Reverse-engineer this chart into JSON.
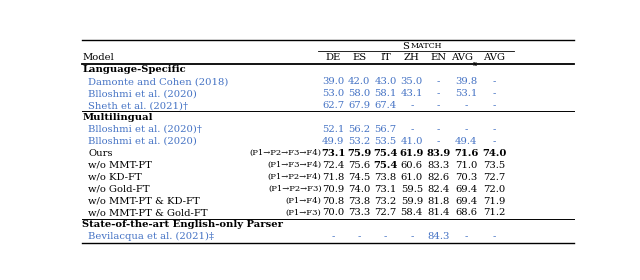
{
  "col_headers_display": [
    "DE",
    "ES",
    "IT",
    "ZH",
    "EN",
    "AVGx",
    "AVG"
  ],
  "sections": [
    {
      "label": "Language-Specific",
      "rows": [
        {
          "model": "Damonte and Cohen (2018)",
          "config": "",
          "vals": [
            "39.0",
            "42.0",
            "43.0",
            "35.0",
            "-",
            "39.8",
            "-"
          ],
          "color": "#4472C4",
          "bold_vals": []
        },
        {
          "model": "Blloshmi et al. (2020)",
          "config": "",
          "vals": [
            "53.0",
            "58.0",
            "58.1",
            "43.1",
            "-",
            "53.1",
            "-"
          ],
          "color": "#4472C4",
          "bold_vals": []
        },
        {
          "model": "Sheth et al. (2021)†",
          "config": "",
          "vals": [
            "62.7",
            "67.9",
            "67.4",
            "-",
            "-",
            "-",
            "-"
          ],
          "color": "#4472C4",
          "bold_vals": []
        }
      ]
    },
    {
      "label": "Multilingual",
      "rows": [
        {
          "model": "Blloshmi et al. (2020)†",
          "config": "",
          "vals": [
            "52.1",
            "56.2",
            "56.7",
            "-",
            "-",
            "-",
            "-"
          ],
          "color": "#4472C4",
          "bold_vals": []
        },
        {
          "model": "Blloshmi et al. (2020)",
          "config": "",
          "vals": [
            "49.9",
            "53.2",
            "53.5",
            "41.0",
            "-",
            "49.4",
            "-"
          ],
          "color": "#4472C4",
          "bold_vals": []
        },
        {
          "model": "Ours",
          "config": "(P1→P2→F3→F4)",
          "vals": [
            "73.1",
            "75.9",
            "75.4",
            "61.9",
            "83.9",
            "71.6",
            "74.0"
          ],
          "color": "#000000",
          "bold_vals": [
            0,
            1,
            2,
            3,
            4,
            5,
            6
          ]
        },
        {
          "model": "w/o MMT-PT",
          "config": "(P1→F3→F4)",
          "vals": [
            "72.4",
            "75.6",
            "75.4",
            "60.6",
            "83.3",
            "71.0",
            "73.5"
          ],
          "color": "#000000",
          "bold_vals": [
            2
          ]
        },
        {
          "model": "w/o KD-FT",
          "config": "(P1→P2→F4)",
          "vals": [
            "71.8",
            "74.5",
            "73.8",
            "61.0",
            "82.6",
            "70.3",
            "72.7"
          ],
          "color": "#000000",
          "bold_vals": []
        },
        {
          "model": "w/o Gold-FT",
          "config": "(P1→P2→F3)",
          "vals": [
            "70.9",
            "74.0",
            "73.1",
            "59.5",
            "82.4",
            "69.4",
            "72.0"
          ],
          "color": "#000000",
          "bold_vals": []
        },
        {
          "model": "w/o MMT-PT & KD-FT",
          "config": "(P1→F4)",
          "vals": [
            "70.8",
            "73.8",
            "73.2",
            "59.9",
            "81.8",
            "69.4",
            "71.9"
          ],
          "color": "#000000",
          "bold_vals": []
        },
        {
          "model": "w/o MMT-PT & Gold-FT",
          "config": "(P1→F3)",
          "vals": [
            "70.0",
            "73.3",
            "72.7",
            "58.4",
            "81.4",
            "68.6",
            "71.2"
          ],
          "color": "#000000",
          "bold_vals": []
        }
      ]
    },
    {
      "label": "State-of-the-art English-only Parser",
      "rows": [
        {
          "model": "Bevilacqua et al. (2021)‡",
          "config": "",
          "vals": [
            "-",
            "-",
            "-",
            "-",
            "84.3",
            "-",
            "-"
          ],
          "color": "#4472C4",
          "bold_vals": []
        }
      ]
    }
  ],
  "fig_width": 6.4,
  "fig_height": 2.8,
  "dpi": 100
}
